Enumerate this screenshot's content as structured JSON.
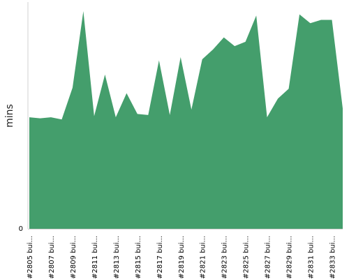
{
  "chart_data": {
    "type": "area",
    "ylabel": "mins",
    "y_tick_labels": [
      "0"
    ],
    "ylim": [
      0,
      2.06
    ],
    "grid": false,
    "legend": "none",
    "x_tick_labels": [
      "#2805 bui...",
      "#2807 bui...",
      "#2809 bui...",
      "#2811 bui...",
      "#2813 bui...",
      "#2815 bui...",
      "#2817 bui...",
      "#2819 bui...",
      "#2821 bui...",
      "#2823 bui...",
      "#2825 bui...",
      "#2827 bui...",
      "#2829 bui...",
      "#2831 bui...",
      "#2833 bui..."
    ],
    "series": [
      {
        "values": [
          1.02,
          1.01,
          1.02,
          1.0,
          1.29,
          1.99,
          1.03,
          1.41,
          1.02,
          1.24,
          1.05,
          1.04,
          1.54,
          1.04,
          1.57,
          1.09,
          1.55,
          1.64,
          1.75,
          1.67,
          1.71,
          1.95,
          1.02,
          1.19,
          1.28,
          1.96,
          1.88,
          1.91,
          1.91,
          1.1
        ]
      }
    ],
    "colors": {
      "area": "#449e6c",
      "axis": "#d0d0d0"
    }
  }
}
